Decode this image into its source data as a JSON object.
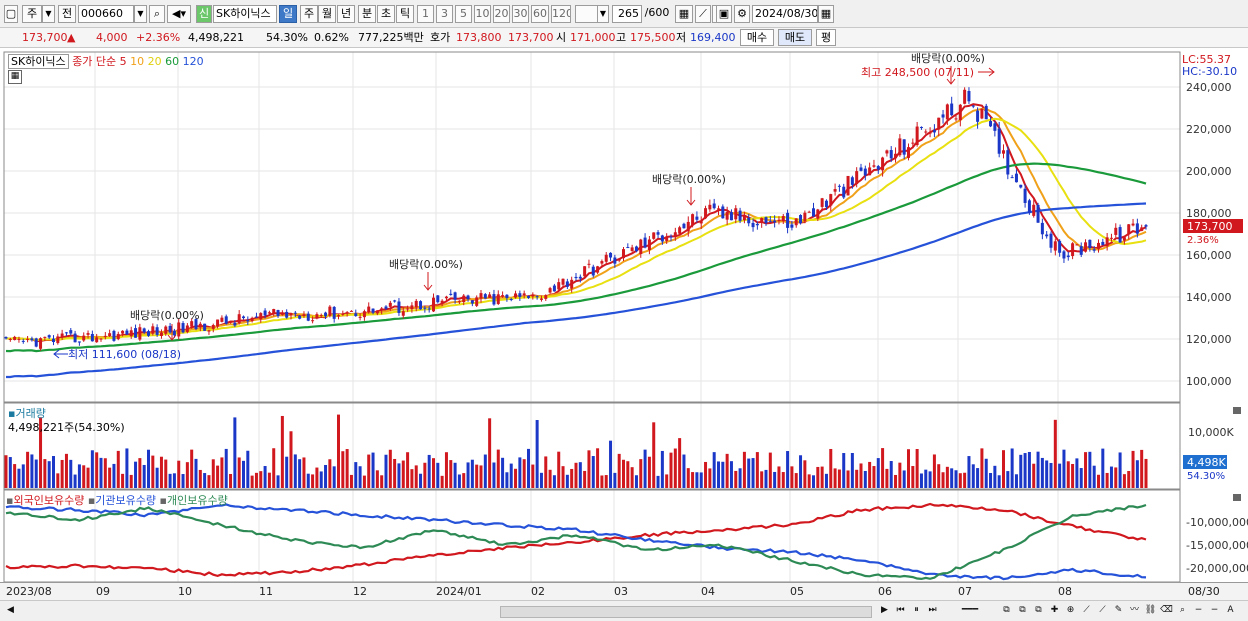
{
  "toolbar": {
    "period_toggle": "주",
    "prefix": "전",
    "code": "000660",
    "credit_badge": "신",
    "stock_name": "SK하이닉스",
    "periods": [
      "일",
      "주",
      "월",
      "년",
      "분",
      "초",
      "틱"
    ],
    "active_period": "일",
    "minutes": [
      "1",
      "3",
      "5",
      "10",
      "20",
      "30",
      "60",
      "120"
    ],
    "count": "265",
    "count_max": "/600",
    "date": "2024/08/30"
  },
  "info": {
    "price": "173,700",
    "change": "4,000",
    "change_pct": "+2.36%",
    "volume": "4,498,221",
    "vol_ratio": "54.30%",
    "turnover": "0.62%",
    "amount": "777,225백만",
    "ask_label": "호가",
    "ask1": "173,800",
    "ask2": "173,700",
    "open_label": "시",
    "open": "171,000",
    "high_label": "고",
    "high": "175,500",
    "low_label": "저",
    "low": "169,400",
    "buy": "매수",
    "sell": "매도",
    "avg": "평"
  },
  "price_panel": {
    "stock_tag": "SK하이닉스",
    "ma_title": "종가 단순",
    "ma_periods": [
      "5",
      "10",
      "20",
      "60",
      "120"
    ],
    "ma_colors": [
      "#d0181e",
      "#f0a11a",
      "#e8e010",
      "#1a9a3a",
      "#2552d8"
    ],
    "lc": "LC:55.37",
    "hc": "HC:-30.10",
    "y_ticks": [
      "240,000",
      "220,000",
      "200,000",
      "180,000",
      "160,000",
      "140,000",
      "120,000",
      "100,000"
    ],
    "current_price": "173,700",
    "current_pct": "2.36%",
    "annotations": {
      "div1": "배당락(0.00%)",
      "div2": "배당락(0.00%)",
      "div3": "배당락(0.00%)",
      "div4": "배당락(0.00%)",
      "high": "최고 248,500 (07/11)",
      "low": "최저 111,600 (08/18)"
    }
  },
  "volume_panel": {
    "title": "거래량",
    "value": "4,498,221주(54.30%)",
    "y_tick": "10,000K",
    "current": "4,498K",
    "current_pct": "54.30%"
  },
  "holding_panel": {
    "items": [
      "외국인보유수량",
      "기관보유수량",
      "개인보유수량"
    ],
    "colors": [
      "#d0181e",
      "#2552d8",
      "#2e8a55"
    ],
    "y_ticks": [
      "-10,000,000",
      "-15,000,000",
      "-20,000,000"
    ]
  },
  "x_axis": {
    "labels": [
      "2023/08",
      "09",
      "10",
      "11",
      "12",
      "2024/01",
      "02",
      "03",
      "04",
      "05",
      "06",
      "07",
      "08"
    ],
    "end_date": "08/30"
  },
  "chart_data": {
    "type": "candlestick",
    "x_start": "2023/08",
    "x_end": "08/30",
    "close_path": [
      [
        "2023/08",
        118000
      ],
      [
        "09",
        121000
      ],
      [
        "10",
        125000
      ],
      [
        "11",
        131000
      ],
      [
        "12",
        133000
      ],
      [
        "2024/01",
        138000
      ],
      [
        "02",
        140000
      ],
      [
        "03",
        160000
      ],
      [
        "04",
        180000
      ],
      [
        "05",
        175000
      ],
      [
        "06",
        205000
      ],
      [
        "07",
        235000
      ],
      [
        "08",
        160000
      ],
      [
        "08/30",
        173700
      ]
    ],
    "ylim": [
      95000,
      250000
    ]
  }
}
